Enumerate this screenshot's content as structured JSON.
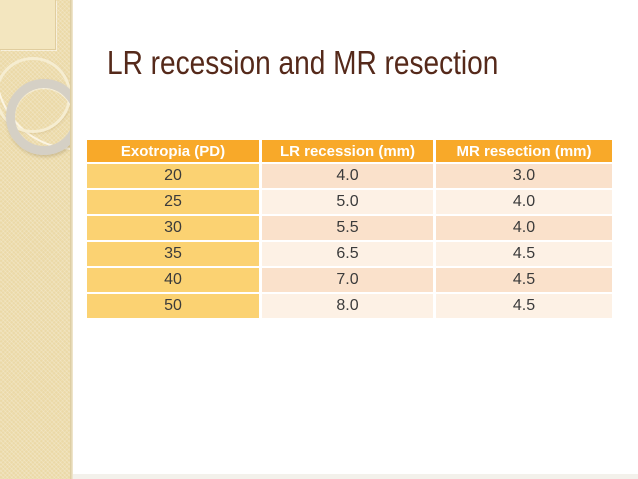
{
  "slide": {
    "title": "LR recession and MR resection",
    "table": {
      "columns": [
        "Exotropia (PD)",
        "LR recession (mm)",
        "MR resection (mm)"
      ],
      "rows": [
        [
          "20",
          "4.0",
          "3.0"
        ],
        [
          "25",
          "5.0",
          "4.0"
        ],
        [
          "30",
          "5.5",
          "4.0"
        ],
        [
          "35",
          "6.5",
          "4.5"
        ],
        [
          "40",
          "7.0",
          "4.5"
        ],
        [
          "50",
          "8.0",
          "4.5"
        ]
      ]
    },
    "colors": {
      "title_text": "#55291A",
      "table_header_bg": "#F8A929",
      "table_header_text": "#FFFFFF",
      "first_column_bg": "#FBD272",
      "row_band_dark": "#FAE1CB",
      "row_band_light": "#FDF1E5",
      "cell_text": "#3B3B3B",
      "sidebar_bg": "#EBD9A7",
      "background": "#FFFFFF"
    }
  }
}
